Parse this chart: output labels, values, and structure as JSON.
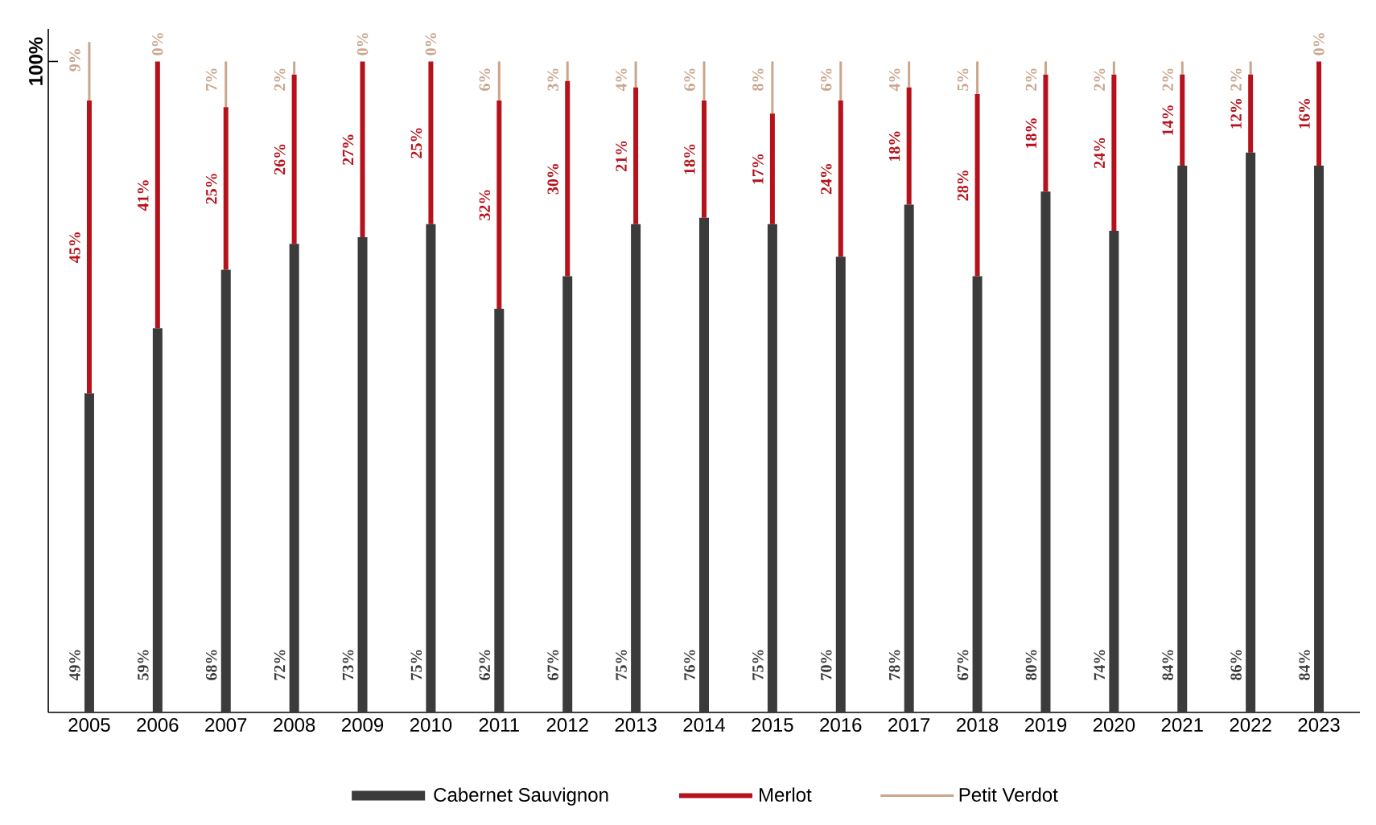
{
  "chart_data": {
    "type": "bar",
    "stacked": true,
    "categories": [
      "2005",
      "2006",
      "2007",
      "2008",
      "2009",
      "2010",
      "2011",
      "2012",
      "2013",
      "2014",
      "2015",
      "2016",
      "2017",
      "2018",
      "2019",
      "2020",
      "2021",
      "2022",
      "2023"
    ],
    "series": [
      {
        "name": "Cabernet Sauvignon",
        "color": "#3b3b3b",
        "values": [
          49,
          59,
          68,
          72,
          73,
          75,
          62,
          67,
          75,
          76,
          75,
          70,
          78,
          67,
          80,
          74,
          84,
          86,
          84
        ],
        "value_labels": [
          "49%",
          "59%",
          "68%",
          "72%",
          "73%",
          "75%",
          "62%",
          "67%",
          "75%",
          "76%",
          "75%",
          "70%",
          "78%",
          "67%",
          "80%",
          "74%",
          "84%",
          "86%",
          "84%"
        ]
      },
      {
        "name": "Merlot",
        "color": "#b5121b",
        "values": [
          45,
          41,
          25,
          26,
          27,
          25,
          32,
          30,
          21,
          18,
          17,
          24,
          18,
          28,
          18,
          24,
          14,
          12,
          16
        ],
        "value_labels": [
          "45%",
          "41%",
          "25%",
          "26%",
          "27%",
          "25%",
          "32%",
          "30%",
          "21%",
          "18%",
          "17%",
          "24%",
          "18%",
          "28%",
          "18%",
          "24%",
          "14%",
          "12%",
          "16%"
        ]
      },
      {
        "name": "Petit Verdot",
        "color": "#c9a58c",
        "values": [
          9,
          0,
          7,
          2,
          0,
          0,
          6,
          3,
          4,
          6,
          8,
          6,
          4,
          5,
          2,
          2,
          2,
          2,
          0
        ],
        "value_labels": [
          "9%",
          "0%",
          "7%",
          "2%",
          "0%",
          "0%",
          "6%",
          "3%",
          "4%",
          "6%",
          "8%",
          "6%",
          "4%",
          "5%",
          "2%",
          "2%",
          "2%",
          "2%",
          "0%"
        ]
      }
    ],
    "ylim": [
      0,
      105
    ],
    "yticks": [
      {
        "value": 100,
        "label": "100%"
      }
    ],
    "legend": "bottom",
    "grid": false
  }
}
